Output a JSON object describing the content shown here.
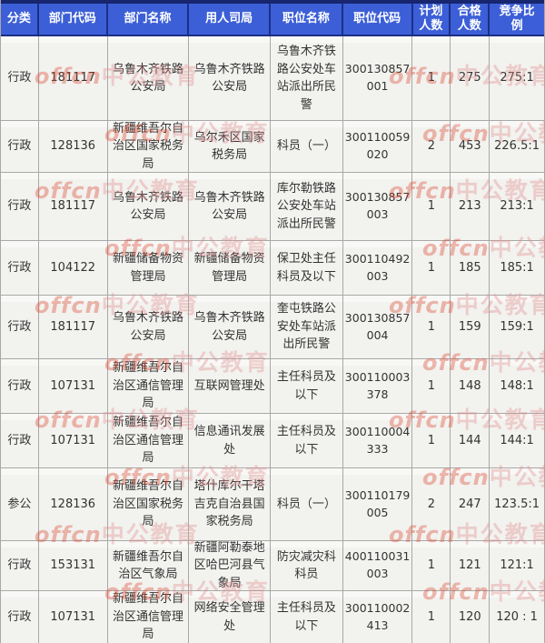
{
  "chart_data": {
    "type": "table",
    "title": "",
    "headers": [
      "分类",
      "部门代码",
      "部门名称",
      "用人司局",
      "职位名称",
      "职位代码",
      "计划\n人数",
      "合格\n人数",
      "竞争比\n例"
    ],
    "rows": [
      [
        "行政",
        "181117",
        "乌鲁木齐铁路公安局",
        "乌鲁木齐铁路公安局",
        "乌鲁木齐铁路公安处车站派出所民警",
        "300130857001",
        "1",
        "275",
        "275:1"
      ],
      [
        "行政",
        "128136",
        "新疆维吾尔自治区国家税务局",
        "乌尔禾区国家税务局",
        "科员（一）",
        "300110059020",
        "2",
        "453",
        "226.5:1"
      ],
      [
        "行政",
        "181117",
        "乌鲁木齐铁路公安局",
        "乌鲁木齐铁路公安局",
        "库尔勒铁路公安处车站派出所民警",
        "300130857003",
        "1",
        "213",
        "213:1"
      ],
      [
        "行政",
        "104122",
        "新疆储备物资管理局",
        "新疆储备物资管理局",
        "保卫处主任科员及以下",
        "300110492003",
        "1",
        "185",
        "185:1"
      ],
      [
        "行政",
        "181117",
        "乌鲁木齐铁路公安局",
        "乌鲁木齐铁路公安局",
        "奎屯铁路公安处车站派出所民警",
        "300130857004",
        "1",
        "159",
        "159:1"
      ],
      [
        "行政",
        "107131",
        "新疆维吾尔自治区通信管理局",
        "互联网管理处",
        "主任科员及以下",
        "300110003378",
        "1",
        "148",
        "148:1"
      ],
      [
        "行政",
        "107131",
        "新疆维吾尔自治区通信管理局",
        "信息通讯发展处",
        "主任科员及以下",
        "300110004333",
        "1",
        "144",
        "144:1"
      ],
      [
        "参公",
        "128136",
        "新疆维吾尔自治区国家税务局",
        "塔什库尔干塔吉克自治县国家税务局",
        "科员（一）",
        "300110179005",
        "2",
        "247",
        "123.5:1"
      ],
      [
        "行政",
        "153131",
        "新疆维吾尔自治区气象局",
        "新疆阿勒泰地区哈巴河县气象局",
        "防灾减灾科科员",
        "400110031003",
        "1",
        "121",
        "121:1"
      ],
      [
        "行政",
        "107131",
        "新疆维吾尔自治区通信管理局",
        "网络安全管理处",
        "主任科员及以下",
        "300110002413",
        "1",
        "120",
        "120 : 1"
      ]
    ]
  },
  "watermark": {
    "brand": "offcn",
    "cn": "中公教育"
  },
  "colors": {
    "header_bg": "#3c5fd7",
    "header_border": "#1c2f85",
    "header_text": "#ffffff",
    "cell_bg": "#f2f2ef",
    "grid_line": "#a8a8a6",
    "cell_text": "#333333",
    "watermark_brand": "#dd4b35",
    "watermark_cn": "#e09090"
  }
}
